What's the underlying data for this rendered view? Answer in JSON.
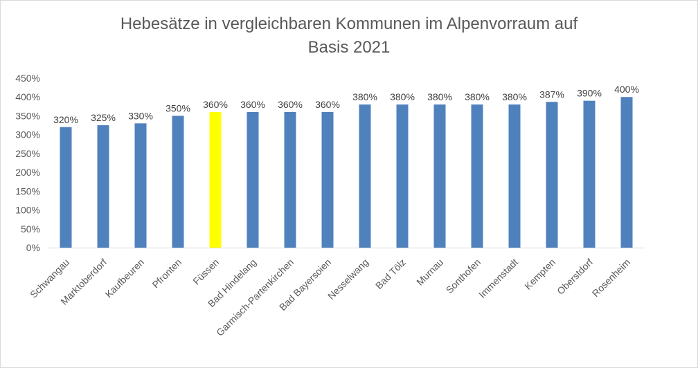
{
  "chart_data": {
    "type": "bar",
    "title_lines": [
      "Hebesätze in vergleichbaren Kommunen im Alpenvorraum auf",
      "Basis 2021"
    ],
    "categories": [
      "Schwangau",
      "Marktoberdorf",
      "Kaufbeuren",
      "Pfronten",
      "Füssen",
      "Bad Hindelang",
      "Garmisch-Partenkirchen",
      "Bad Bayersoien",
      "Nesselwang",
      "Bad Tölz",
      "Murnau",
      "Sonthofen",
      "Immenstadt",
      "Kempten",
      "Oberstdorf",
      "Rosenheim"
    ],
    "values": [
      320,
      325,
      330,
      350,
      360,
      360,
      360,
      360,
      380,
      380,
      380,
      380,
      380,
      387,
      390,
      400
    ],
    "data_labels": [
      "320%",
      "325%",
      "330%",
      "350%",
      "360%",
      "360%",
      "360%",
      "360%",
      "380%",
      "380%",
      "380%",
      "380%",
      "380%",
      "387%",
      "390%",
      "400%"
    ],
    "ylim": [
      0,
      450
    ],
    "y_ticks": [
      "0%",
      "50%",
      "100%",
      "150%",
      "200%",
      "250%",
      "300%",
      "350%",
      "400%",
      "450%"
    ],
    "xlabel": "",
    "ylabel": "",
    "grid": false,
    "legend": "none",
    "colors": {
      "bar": "#4f81bd",
      "highlight": "#ffff00",
      "highlight_index": 4
    }
  }
}
